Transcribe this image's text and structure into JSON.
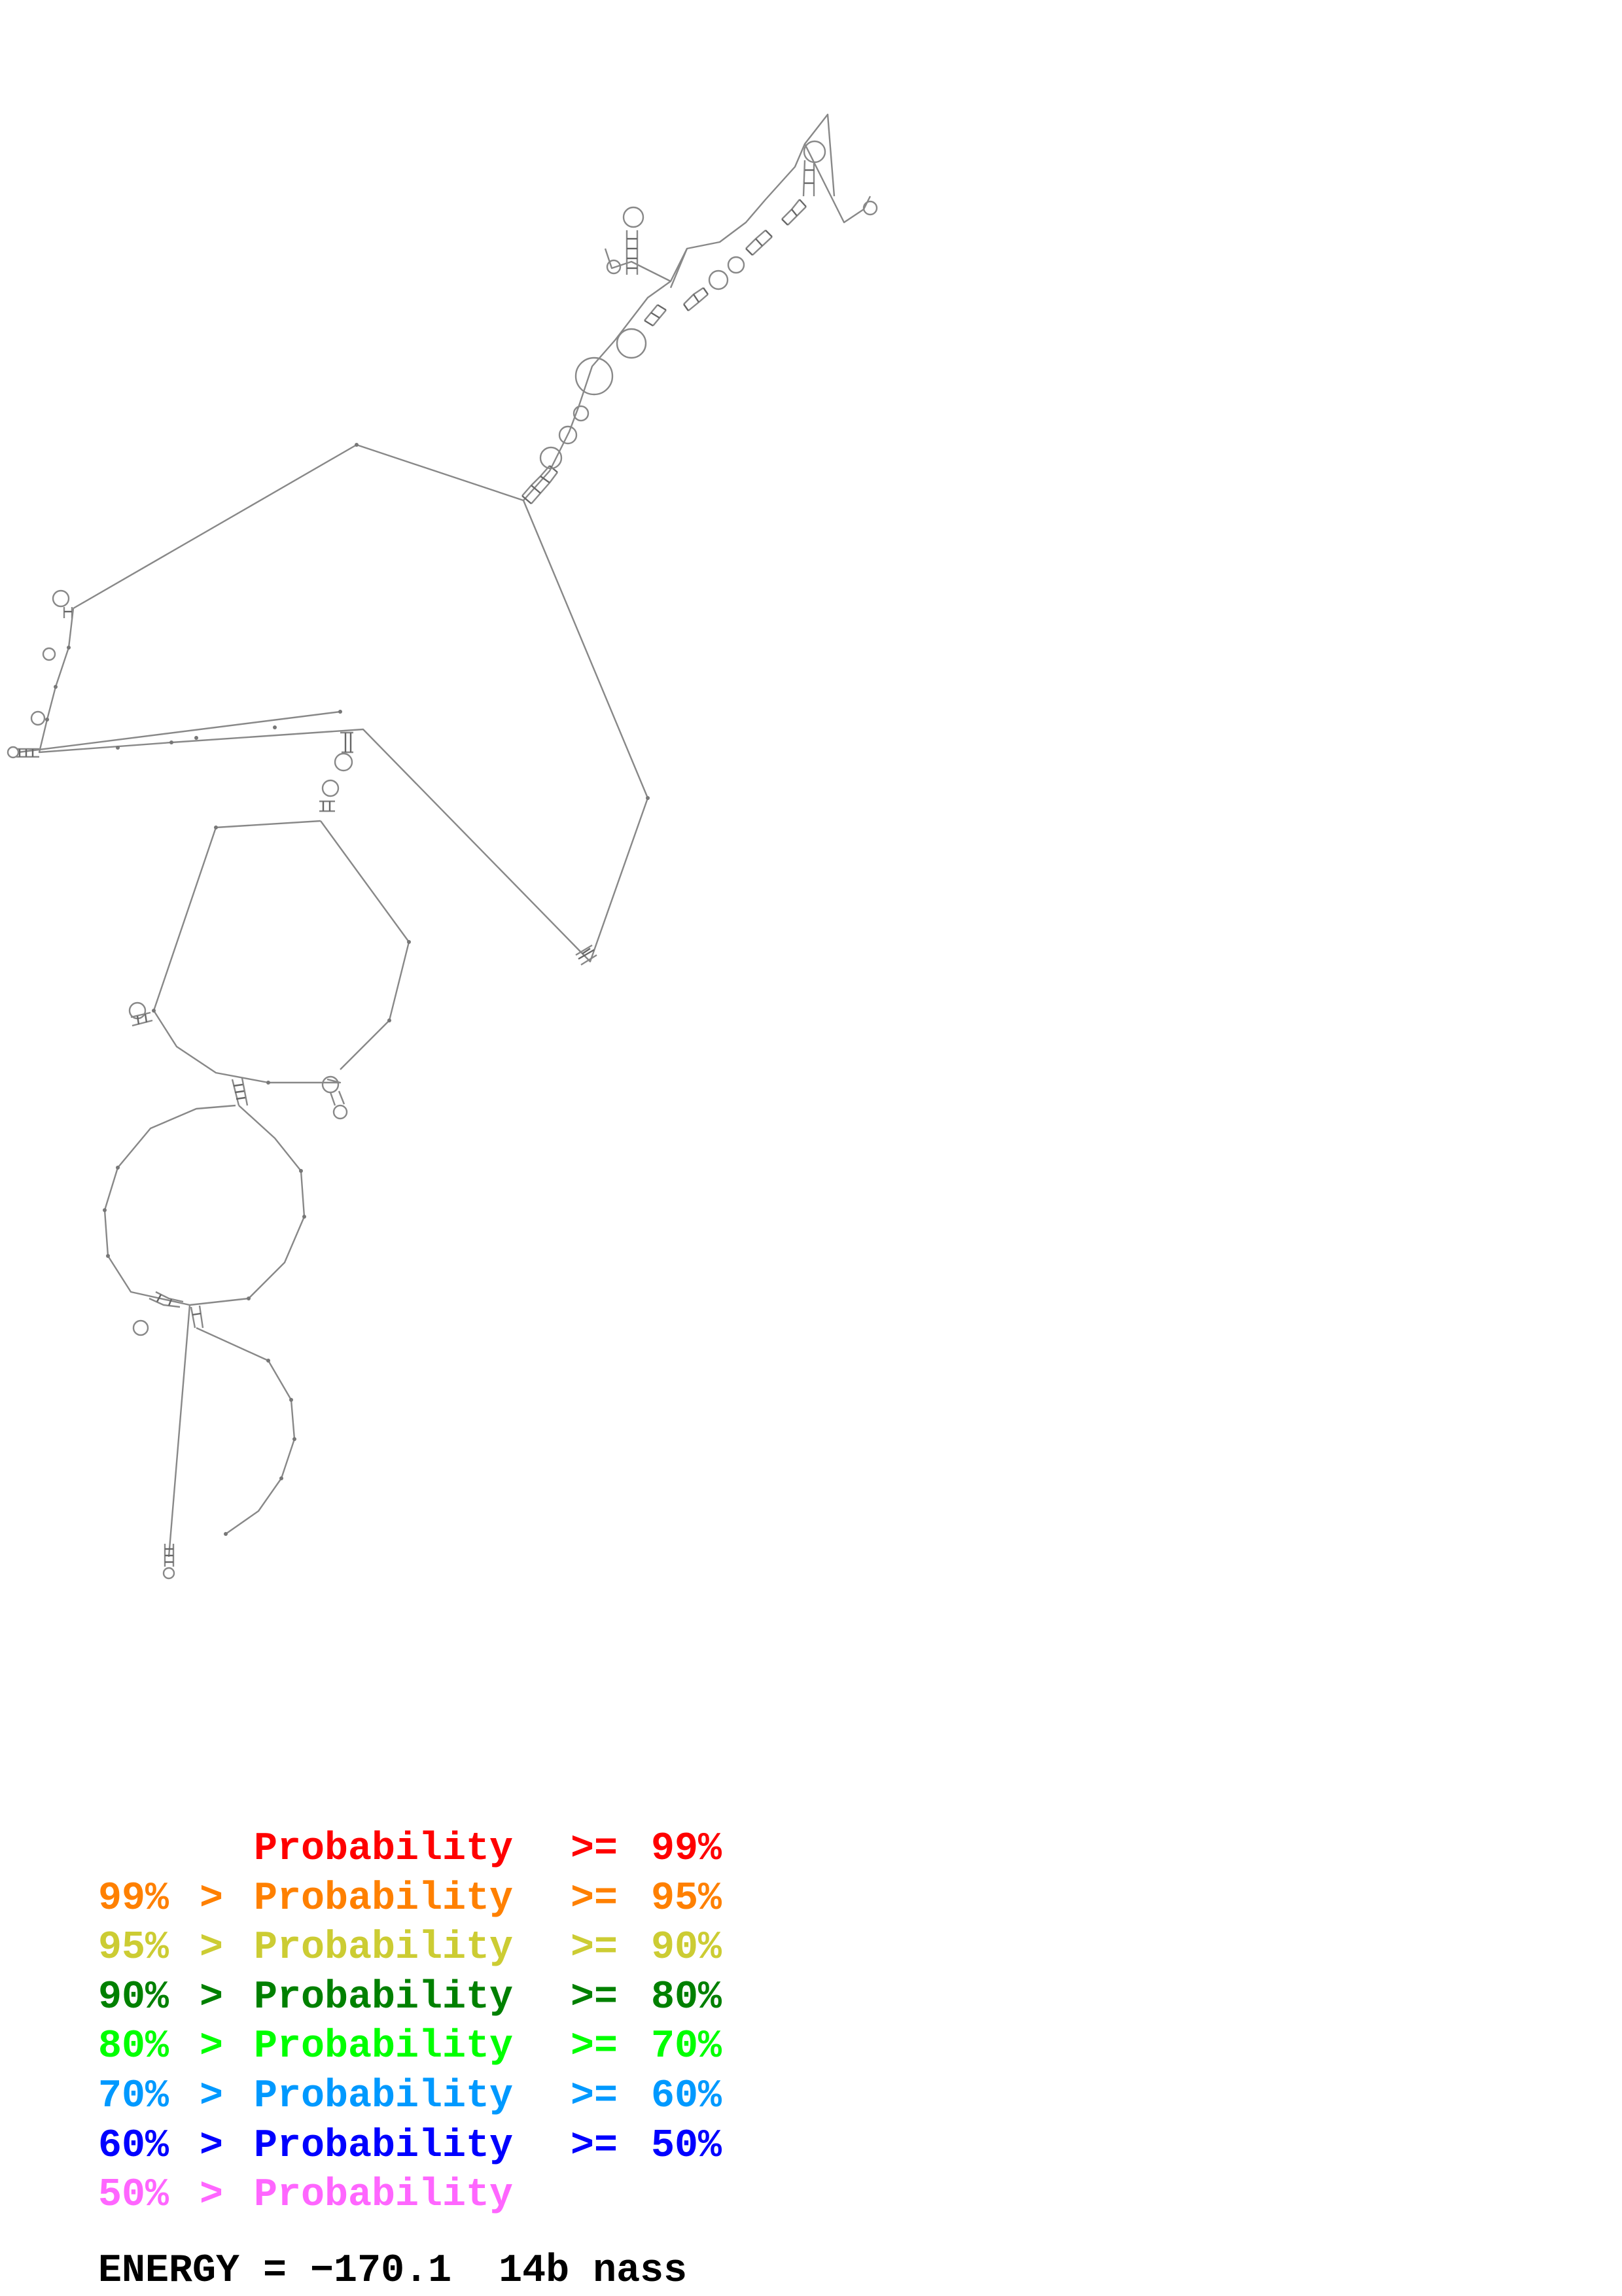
{
  "legend": {
    "operator_gt": ">",
    "operator_ge": ">=",
    "word": "Probability",
    "rows": [
      {
        "low": "",
        "high": "99%",
        "color": "#ff0000"
      },
      {
        "low": "99%",
        "high": "95%",
        "color": "#ff8000"
      },
      {
        "low": "95%",
        "high": "90%",
        "color": "#cccc33"
      },
      {
        "low": "90%",
        "high": "80%",
        "color": "#008000"
      },
      {
        "low": "80%",
        "high": "70%",
        "color": "#00ff00"
      },
      {
        "low": "70%",
        "high": "60%",
        "color": "#0099ff"
      },
      {
        "low": "60%",
        "high": "50%",
        "color": "#0000ff"
      },
      {
        "low": "50%",
        "high": "",
        "color": "#ff66ff"
      }
    ]
  },
  "energy": {
    "text": "ENERGY = −170.1  14b nass"
  }
}
